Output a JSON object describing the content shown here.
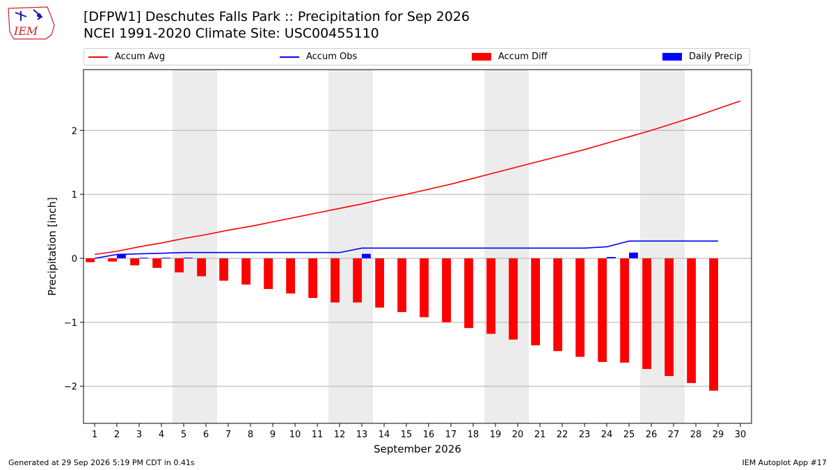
{
  "header": {
    "title_line1": "[DFPW1] Deschutes Falls Park :: Precipitation for Sep 2026",
    "title_line2": "NCEI 1991-2020 Climate Site: USC00455110",
    "logo_text": "IEM"
  },
  "legend": [
    {
      "label": "Accum Avg",
      "color": "#ff0000",
      "kind": "line"
    },
    {
      "label": "Accum Obs",
      "color": "#0000ff",
      "kind": "line"
    },
    {
      "label": "Accum Diff",
      "color": "#ff0000",
      "kind": "box"
    },
    {
      "label": "Daily Precip",
      "color": "#0000ff",
      "kind": "box"
    }
  ],
  "footer": {
    "left": "Generated at 29 Sep 2026 5:19 PM CDT in 0.41s",
    "right": "IEM Autoplot App #17"
  },
  "chart_data": {
    "type": "bar",
    "xlabel": "September 2026",
    "ylabel": "Precipitation [inch]",
    "ylim": [
      -2.58,
      2.95
    ],
    "xlim": [
      0.5,
      30.5
    ],
    "yticks": [
      -2,
      -1,
      0,
      1,
      2
    ],
    "ytick_labels": [
      "−2",
      "−1",
      "0",
      "1",
      "2"
    ],
    "x": [
      1,
      2,
      3,
      4,
      5,
      6,
      7,
      8,
      9,
      10,
      11,
      12,
      13,
      14,
      15,
      16,
      17,
      18,
      19,
      20,
      21,
      22,
      23,
      24,
      25,
      26,
      27,
      28,
      29,
      30
    ],
    "weekend_spans": [
      [
        4.5,
        6.5
      ],
      [
        11.5,
        13.5
      ],
      [
        18.5,
        20.5
      ],
      [
        25.5,
        27.5
      ]
    ],
    "grid": "horizontal",
    "series": [
      {
        "name": "Accum Avg",
        "kind": "line",
        "color": "#ff0000",
        "x": [
          1,
          2,
          3,
          4,
          5,
          6,
          7,
          8,
          9,
          10,
          11,
          12,
          13,
          14,
          15,
          16,
          17,
          18,
          19,
          20,
          21,
          22,
          23,
          24,
          25,
          26,
          27,
          28,
          29,
          30
        ],
        "values": [
          0.06,
          0.11,
          0.18,
          0.24,
          0.31,
          0.37,
          0.44,
          0.5,
          0.57,
          0.64,
          0.71,
          0.78,
          0.85,
          0.93,
          1.0,
          1.08,
          1.16,
          1.25,
          1.34,
          1.43,
          1.52,
          1.61,
          1.7,
          1.8,
          1.9,
          2.0,
          2.11,
          2.22,
          2.34,
          2.46
        ]
      },
      {
        "name": "Accum Obs",
        "kind": "line",
        "color": "#0000ff",
        "x": [
          1,
          2,
          3,
          4,
          5,
          6,
          7,
          8,
          9,
          10,
          11,
          12,
          13,
          14,
          15,
          16,
          17,
          18,
          19,
          20,
          21,
          22,
          23,
          24,
          25,
          26,
          27,
          28,
          29
        ],
        "values": [
          0.0,
          0.06,
          0.07,
          0.08,
          0.09,
          0.09,
          0.09,
          0.09,
          0.09,
          0.09,
          0.09,
          0.09,
          0.16,
          0.16,
          0.16,
          0.16,
          0.16,
          0.16,
          0.16,
          0.16,
          0.16,
          0.16,
          0.16,
          0.18,
          0.27,
          0.27,
          0.27,
          0.27,
          0.27
        ]
      },
      {
        "name": "Accum Diff",
        "kind": "bar",
        "color": "#ff0000",
        "offset": -0.2,
        "x": [
          1,
          2,
          3,
          4,
          5,
          6,
          7,
          8,
          9,
          10,
          11,
          12,
          13,
          14,
          15,
          16,
          17,
          18,
          19,
          20,
          21,
          22,
          23,
          24,
          25,
          26,
          27,
          28,
          29
        ],
        "values": [
          -0.06,
          -0.05,
          -0.11,
          -0.15,
          -0.22,
          -0.28,
          -0.35,
          -0.41,
          -0.48,
          -0.55,
          -0.62,
          -0.69,
          -0.69,
          -0.77,
          -0.84,
          -0.92,
          -1.0,
          -1.09,
          -1.18,
          -1.27,
          -1.36,
          -1.45,
          -1.54,
          -1.62,
          -1.63,
          -1.73,
          -1.84,
          -1.95,
          -2.07
        ]
      },
      {
        "name": "Daily Precip",
        "kind": "bar",
        "color": "#0000ff",
        "offset": 0.2,
        "x": [
          1,
          2,
          3,
          4,
          5,
          6,
          7,
          8,
          9,
          10,
          11,
          12,
          13,
          14,
          15,
          16,
          17,
          18,
          19,
          20,
          21,
          22,
          23,
          24,
          25,
          26,
          27,
          28,
          29
        ],
        "values": [
          0.0,
          0.06,
          0.01,
          0.01,
          0.01,
          0.0,
          0.0,
          0.0,
          0.0,
          0.0,
          0.0,
          0.0,
          0.07,
          0.0,
          0.0,
          0.0,
          0.0,
          0.0,
          0.0,
          0.0,
          0.0,
          0.0,
          0.0,
          0.02,
          0.09,
          0.0,
          0.0,
          0.0,
          0.0
        ]
      }
    ]
  }
}
